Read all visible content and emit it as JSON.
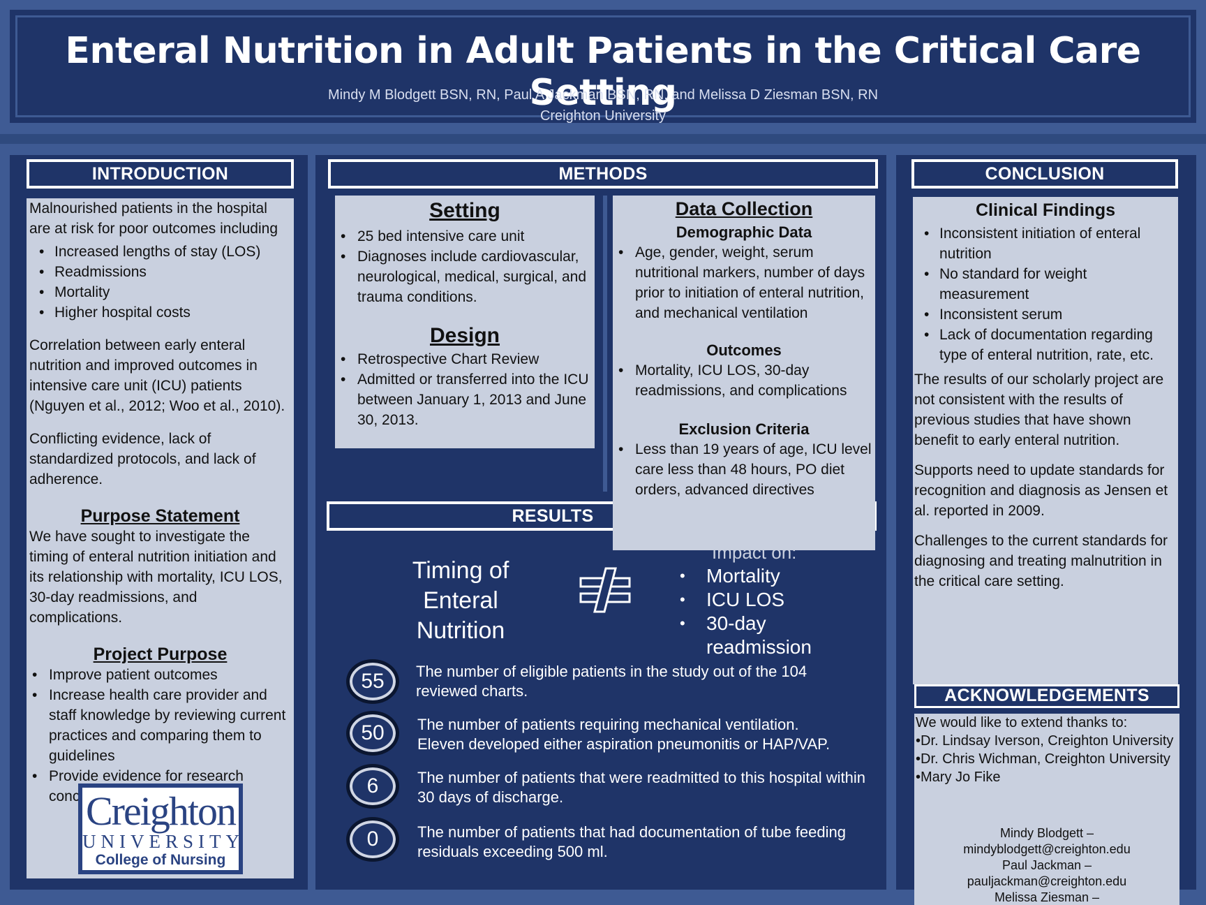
{
  "header": {
    "title": "Enteral Nutrition in Adult Patients in the Critical Care Setting",
    "authors": "Mindy M Blodgett BSN, RN, Paul A Jackman BSN, RN, and  Melissa D Ziesman BSN, RN",
    "institution": "Creighton University"
  },
  "introduction": {
    "heading": "INTRODUCTION",
    "lead": "Malnourished patients in the hospital are at risk for poor outcomes including",
    "risks": [
      "Increased lengths of stay (LOS)",
      "Readmissions",
      "Mortality",
      "Higher hospital costs"
    ],
    "correlation": "Correlation between early enteral nutrition and improved outcomes in intensive care unit (ICU) patients (Nguyen et al., 2012; Woo et al., 2010).",
    "conflicting": "Conflicting evidence, lack of standardized protocols, and lack of adherence.",
    "purpose_heading": "Purpose Statement",
    "purpose_text": "We have sought to investigate the timing of enteral nutrition initiation and its relationship with mortality, ICU LOS, 30-day readmissions, and complications.",
    "project_heading": "Project Purpose",
    "project_items": [
      "Improve patient outcomes",
      "Increase health care provider and staff knowledge by reviewing current practices and comparing them to guidelines",
      "Provide evidence for research concerning nutrition"
    ]
  },
  "logo": {
    "name": "Creighton",
    "university": "UNIVERSITY",
    "college": "College of Nursing"
  },
  "methods": {
    "heading": "METHODS",
    "setting_heading": "Setting",
    "setting_items": [
      "25 bed intensive care unit",
      "Diagnoses include cardiovascular, neurological, medical, surgical, and trauma conditions."
    ],
    "design_heading": "Design",
    "design_items": [
      "Retrospective Chart Review",
      "Admitted or transferred into the ICU between January 1, 2013 and June 30, 2013."
    ],
    "data_heading": "Data Collection",
    "demographic_heading": "Demographic Data",
    "demographic_items": [
      "Age, gender, weight, serum nutritional markers, number of days prior to initiation of enteral nutrition, and mechanical ventilation"
    ],
    "outcomes_heading": "Outcomes",
    "outcomes_items": [
      "Mortality, ICU LOS, 30-day readmissions, and complications"
    ],
    "exclusion_heading": "Exclusion Criteria",
    "exclusion_items": [
      "Less than 19 years of age, ICU level care less than 48 hours, PO diet orders, advanced directives"
    ]
  },
  "results": {
    "heading": "RESULTS",
    "timing": "Timing of Enteral Nutrition",
    "neq_icon": "not-equal-icon",
    "impact_label": "Impact on:",
    "impact_items": [
      "Mortality",
      "ICU LOS",
      "30-day readmission"
    ],
    "stats": [
      {
        "value": "55",
        "text": "The number of eligible patients in the study out of the 104 reviewed charts."
      },
      {
        "value": "50",
        "text": "The number of patients requiring mechanical ventilation. Eleven developed either aspiration pneumonitis or HAP/VAP."
      },
      {
        "value": "6",
        "text": "The number of patients that were readmitted to this hospital within 30 days of discharge."
      },
      {
        "value": "0",
        "text": "The number of patients that had documentation of tube feeding residuals exceeding 500 ml."
      }
    ]
  },
  "conclusion": {
    "heading": "CONCLUSION",
    "findings_heading": "Clinical Findings",
    "findings": [
      "Inconsistent initiation of enteral nutrition",
      "No standard for weight measurement",
      "Inconsistent serum",
      "Lack of documentation regarding type of enteral nutrition, rate, etc."
    ],
    "p1": "The results of our scholarly project are not consistent with the results of previous studies that have shown benefit to early enteral nutrition.",
    "p2": "Supports need to update standards for recognition and diagnosis as Jensen et al. reported in 2009.",
    "p3": "Challenges to the current standards for diagnosing and treating malnutrition in the critical care setting."
  },
  "acknowledgements": {
    "heading": "ACKNOWLEDGEMENTS",
    "intro": "We would like to extend thanks to:",
    "people": [
      "•Dr. Lindsay Iverson, Creighton University",
      "•Dr. Chris Wichman, Creighton University",
      "•Mary Jo Fike"
    ],
    "contacts": [
      "Mindy Blodgett –",
      "mindyblodgett@creighton.edu",
      "Paul Jackman –",
      "pauljackman@creighton.edu",
      "Melissa Ziesman –"
    ]
  },
  "colors": {
    "navy": "#1f3468",
    "panel": "#c9d0df",
    "frame": "#3e5a93"
  }
}
